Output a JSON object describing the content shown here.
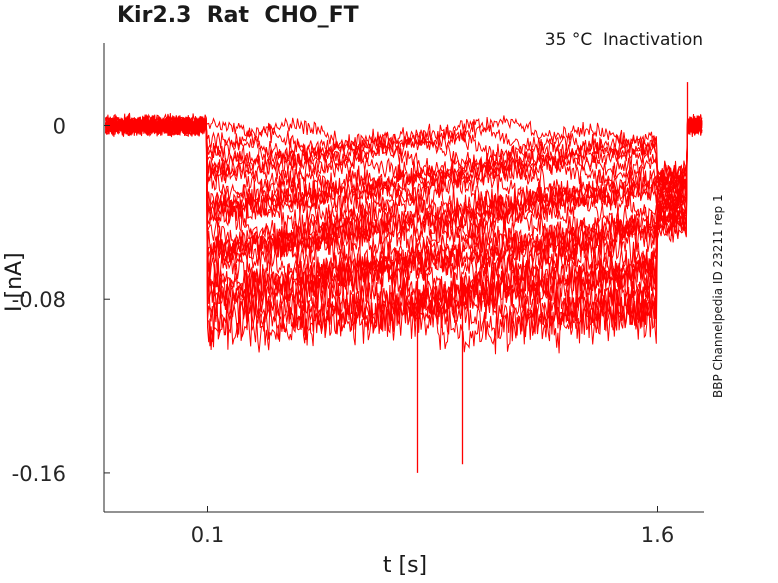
{
  "chart_data": {
    "type": "line",
    "title": "Kir2.3  Rat  CHO_FT",
    "subtitle": "35 °C  Inactivation",
    "side_note": "BBP Channelpedia ID 23211 rep 1",
    "xlabel": "t [s]",
    "ylabel": "I [nA]",
    "xlim": [
      -0.245,
      1.755
    ],
    "ylim": [
      -0.178,
      0.038
    ],
    "xticks": [
      0.1,
      1.6
    ],
    "xtick_labels": [
      "0.1",
      "1.6"
    ],
    "yticks": [
      0,
      -0.08,
      -0.16
    ],
    "ytick_labels": [
      "0",
      "-0.08",
      "-0.16"
    ],
    "grid": false,
    "line_color": "#ff0000",
    "trace_count": 30,
    "protocol": {
      "pre_step_end": 0.1,
      "step_end": 1.6,
      "tail_end": 1.7,
      "baseline_level": 0.0,
      "step_levels": [
        -0.004,
        -0.007,
        -0.01,
        -0.013,
        -0.016,
        -0.019,
        -0.022,
        -0.025,
        -0.028,
        -0.031,
        -0.034,
        -0.037,
        -0.04,
        -0.043,
        -0.046,
        -0.049,
        -0.052,
        -0.055,
        -0.058,
        -0.061,
        -0.064,
        -0.067,
        -0.07,
        -0.073,
        -0.076,
        -0.079,
        -0.082,
        -0.085,
        -0.088,
        -0.091
      ],
      "tail_level": -0.035
    },
    "spikes": [
      {
        "t": 0.8,
        "value": -0.16
      },
      {
        "t": 0.95,
        "value": -0.156
      },
      {
        "t": 1.7,
        "value": 0.02
      }
    ]
  }
}
